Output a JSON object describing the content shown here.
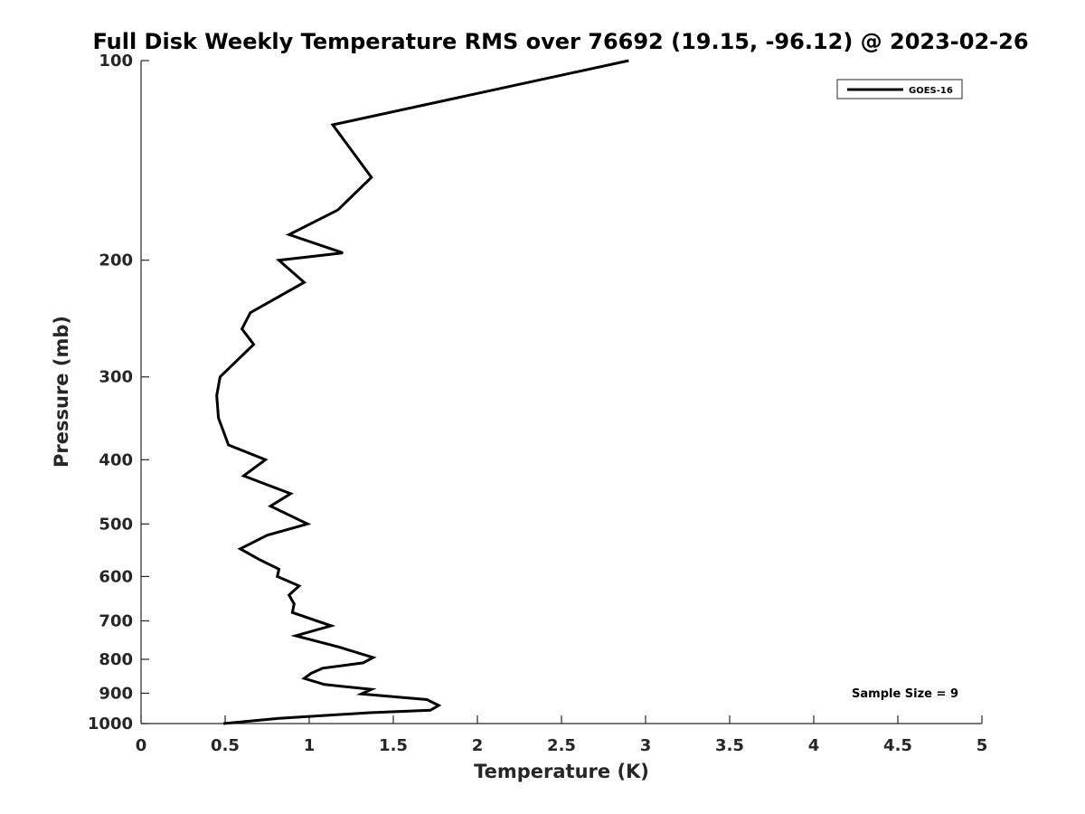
{
  "chart_data": {
    "type": "line",
    "title": "Full Disk Weekly Temperature RMS over 76692 (19.15, -96.12) @ 2023-02-26",
    "xlabel": "Temperature (K)",
    "ylabel": "Pressure (mb)",
    "xlim": [
      0,
      5
    ],
    "ylim": [
      100,
      1000
    ],
    "y_scale": "log",
    "y_reversed": true,
    "x_ticks": [
      "0",
      "0.5",
      "1",
      "1.5",
      "2",
      "2.5",
      "3",
      "3.5",
      "4",
      "4.5",
      "5"
    ],
    "y_ticks": [
      "100",
      "200",
      "300",
      "400",
      "500",
      "600",
      "700",
      "800",
      "900",
      "1000"
    ],
    "grid": false,
    "legend_position": "top-right",
    "annotation": "Sample Size = 9",
    "colors": {
      "line": "#000000",
      "axis": "#262626"
    },
    "series": [
      {
        "name": "GOES-16",
        "x": [
          2.9,
          1.14,
          1.37,
          1.17,
          0.88,
          1.2,
          0.82,
          0.97,
          0.65,
          0.6,
          0.67,
          0.47,
          0.45,
          0.46,
          0.52,
          0.74,
          0.61,
          0.89,
          0.77,
          0.99,
          0.75,
          0.59,
          0.7,
          0.82,
          0.81,
          0.94,
          0.88,
          0.91,
          0.9,
          1.13,
          0.92,
          1.18,
          1.38,
          1.32,
          1.08,
          1.01,
          0.97,
          1.09,
          1.37,
          1.31,
          1.7,
          1.77,
          1.72,
          1.36,
          0.82,
          0.49
        ],
        "y": [
          100,
          125,
          150,
          168,
          183,
          195,
          200,
          216,
          240,
          254,
          268,
          300,
          320,
          346,
          380,
          400,
          423,
          450,
          470,
          500,
          520,
          545,
          565,
          585,
          600,
          620,
          640,
          660,
          680,
          712,
          737,
          767,
          795,
          810,
          825,
          840,
          855,
          873,
          888,
          902,
          920,
          939,
          955,
          963,
          982,
          1000
        ]
      }
    ]
  }
}
